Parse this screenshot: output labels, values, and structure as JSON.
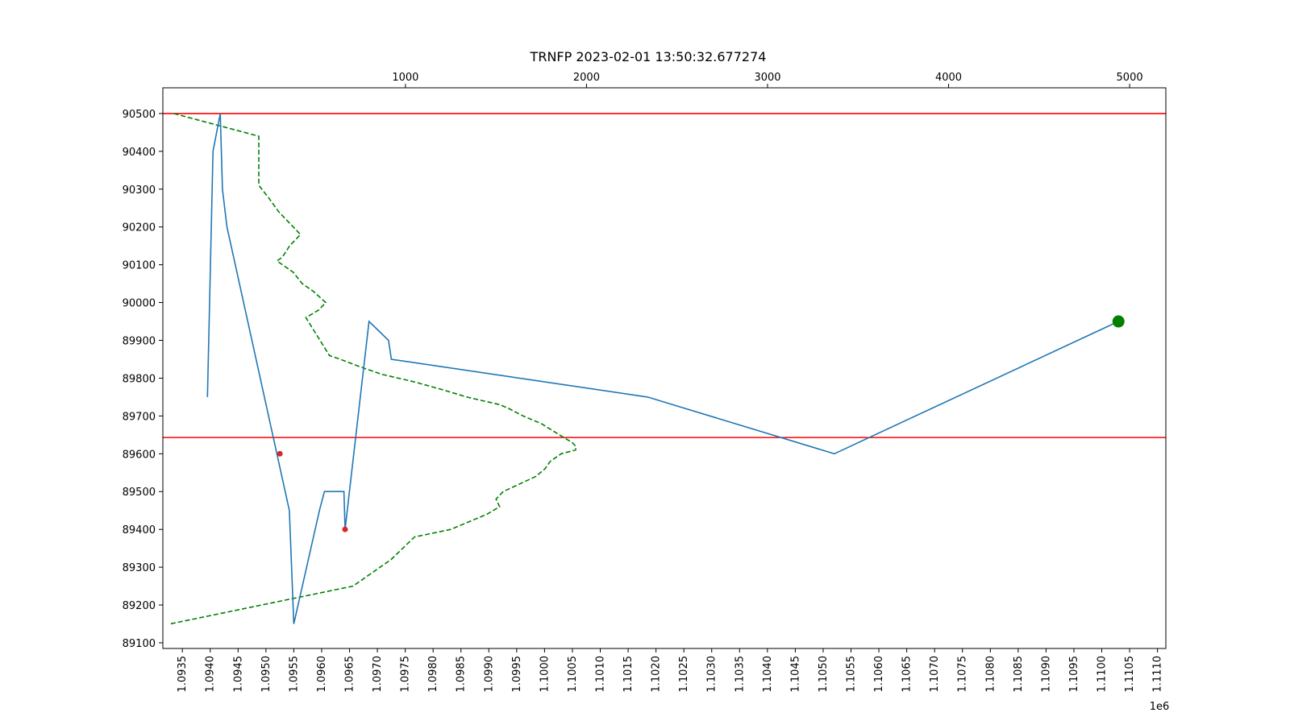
{
  "chart_data": {
    "type": "line",
    "title": "TRNFP 2023-02-01 13:50:32.677274",
    "xlabel": "",
    "ylabel": "",
    "x_offset_text": "1e6",
    "grid": false,
    "xlim_bottom": [
      1093150,
      1111150
    ],
    "xlim_top": [
      -340,
      5200
    ],
    "ylim": [
      89085,
      90568
    ],
    "bottom_ticks": [
      {
        "value": 1093500,
        "label": "1.0935"
      },
      {
        "value": 1094000,
        "label": "1.0940"
      },
      {
        "value": 1094500,
        "label": "1.0945"
      },
      {
        "value": 1095000,
        "label": "1.0950"
      },
      {
        "value": 1095500,
        "label": "1.0955"
      },
      {
        "value": 1096000,
        "label": "1.0960"
      },
      {
        "value": 1096500,
        "label": "1.0965"
      },
      {
        "value": 1097000,
        "label": "1.0970"
      },
      {
        "value": 1097500,
        "label": "1.0975"
      },
      {
        "value": 1098000,
        "label": "1.0980"
      },
      {
        "value": 1098500,
        "label": "1.0985"
      },
      {
        "value": 1099000,
        "label": "1.0990"
      },
      {
        "value": 1099500,
        "label": "1.0995"
      },
      {
        "value": 1100000,
        "label": "1.1000"
      },
      {
        "value": 1100500,
        "label": "1.1005"
      },
      {
        "value": 1101000,
        "label": "1.1010"
      },
      {
        "value": 1101500,
        "label": "1.1015"
      },
      {
        "value": 1102000,
        "label": "1.1020"
      },
      {
        "value": 1102500,
        "label": "1.1025"
      },
      {
        "value": 1103000,
        "label": "1.1030"
      },
      {
        "value": 1103500,
        "label": "1.1035"
      },
      {
        "value": 1104000,
        "label": "1.1040"
      },
      {
        "value": 1104500,
        "label": "1.1045"
      },
      {
        "value": 1105000,
        "label": "1.1050"
      },
      {
        "value": 1105500,
        "label": "1.1055"
      },
      {
        "value": 1106000,
        "label": "1.1060"
      },
      {
        "value": 1106500,
        "label": "1.1065"
      },
      {
        "value": 1107000,
        "label": "1.1070"
      },
      {
        "value": 1107500,
        "label": "1.1075"
      },
      {
        "value": 1108000,
        "label": "1.1080"
      },
      {
        "value": 1108500,
        "label": "1.1085"
      },
      {
        "value": 1109000,
        "label": "1.1090"
      },
      {
        "value": 1109500,
        "label": "1.1095"
      },
      {
        "value": 1110000,
        "label": "1.1100"
      },
      {
        "value": 1110500,
        "label": "1.1105"
      },
      {
        "value": 1111000,
        "label": "1.1110"
      }
    ],
    "top_ticks": [
      {
        "value": 1000,
        "label": "1000"
      },
      {
        "value": 2000,
        "label": "2000"
      },
      {
        "value": 3000,
        "label": "3000"
      },
      {
        "value": 4000,
        "label": "4000"
      },
      {
        "value": 5000,
        "label": "5000"
      }
    ],
    "y_ticks": [
      {
        "value": 89100,
        "label": "89100"
      },
      {
        "value": 89200,
        "label": "89200"
      },
      {
        "value": 89300,
        "label": "89300"
      },
      {
        "value": 89400,
        "label": "89400"
      },
      {
        "value": 89500,
        "label": "89500"
      },
      {
        "value": 89600,
        "label": "89600"
      },
      {
        "value": 89700,
        "label": "89700"
      },
      {
        "value": 89800,
        "label": "89800"
      },
      {
        "value": 89900,
        "label": "89900"
      },
      {
        "value": 90000,
        "label": "90000"
      },
      {
        "value": 90100,
        "label": "90100"
      },
      {
        "value": 90200,
        "label": "90200"
      },
      {
        "value": 90300,
        "label": "90300"
      },
      {
        "value": 90400,
        "label": "90400"
      },
      {
        "value": 90500,
        "label": "90500"
      }
    ],
    "hlines": [
      {
        "y": 90500,
        "color": "#ff0000"
      },
      {
        "y": 89643,
        "color": "#ff0000"
      }
    ],
    "price_series": {
      "axis": "bottom",
      "color": "#1f77b4",
      "x": [
        1093950,
        1094050,
        1094180,
        1094220,
        1094300,
        1095420,
        1095500,
        1095960,
        1096050,
        1096400,
        1096420,
        1096850,
        1097200,
        1097250,
        1101850,
        1105200,
        1110300
      ],
      "y": [
        89750,
        90400,
        90500,
        90300,
        90200,
        89450,
        89150,
        89450,
        89500,
        89500,
        89400,
        89950,
        89900,
        89850,
        89750,
        89600,
        89950
      ]
    },
    "volume_profile": {
      "axis": "top",
      "color": "#008000",
      "style": "dashed",
      "x": [
        -280,
        190,
        190,
        240,
        300,
        380,
        420,
        360,
        320,
        290,
        380,
        430,
        490,
        560,
        520,
        450,
        580,
        640,
        750,
        870,
        1050,
        1200,
        1270,
        1340,
        1430,
        1520,
        1570,
        1650,
        1750,
        1850,
        1920,
        1940,
        1940,
        1860,
        1800,
        1770,
        1720,
        1630,
        1540,
        1500,
        1520,
        1450,
        1250,
        1050,
        920,
        710,
        -300
      ],
      "y": [
        90500,
        90440,
        90310,
        90280,
        90240,
        90200,
        90180,
        90150,
        90120,
        90110,
        90080,
        90050,
        90030,
        90000,
        89980,
        89960,
        89860,
        89850,
        89830,
        89810,
        89790,
        89770,
        89760,
        89750,
        89740,
        89730,
        89720,
        89700,
        89680,
        89650,
        89630,
        89620,
        89610,
        89600,
        89580,
        89560,
        89540,
        89520,
        89500,
        89480,
        89460,
        89440,
        89400,
        89380,
        89320,
        89250,
        89150
      ]
    },
    "markers": [
      {
        "axis": "bottom",
        "x": 1095250,
        "y": 89600,
        "color": "#d62728",
        "size": "small"
      },
      {
        "axis": "bottom",
        "x": 1096420,
        "y": 89400,
        "color": "#d62728",
        "size": "small"
      },
      {
        "axis": "bottom",
        "x": 1110300,
        "y": 89950,
        "color": "#008000",
        "size": "large"
      }
    ]
  }
}
